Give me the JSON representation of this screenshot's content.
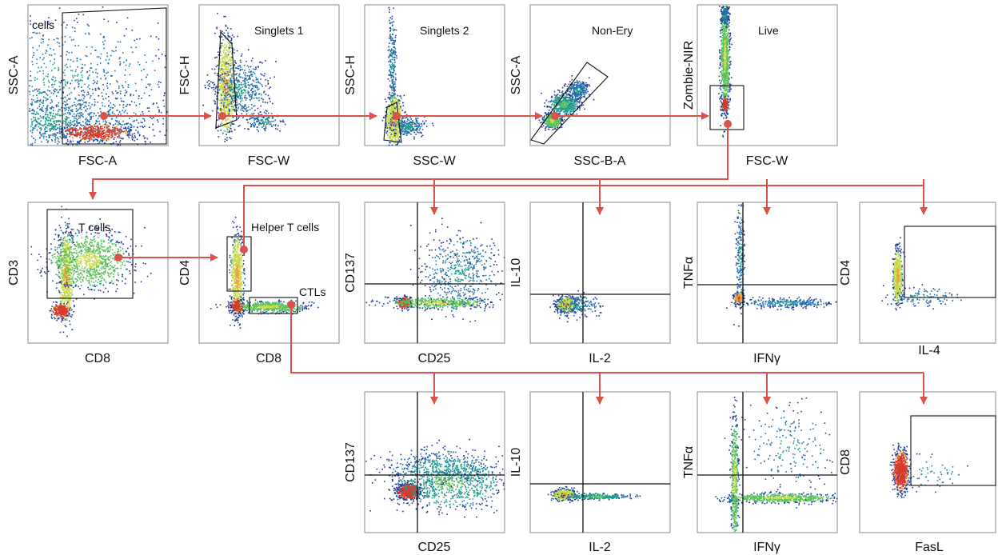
{
  "colors": {
    "arrow": "#d9534a",
    "density": [
      "#1a1b6e",
      "#213a98",
      "#1f6fa8",
      "#1e9c8c",
      "#5cc05a",
      "#c9d84a",
      "#f0a038",
      "#d63a2a"
    ],
    "axis_line": "#111111",
    "frame": "#888888"
  },
  "panels": [
    {
      "id": "cells",
      "x_label": "FSC-A",
      "y_label": "SSC-A",
      "gate_label": "cells"
    },
    {
      "id": "singlets1",
      "x_label": "FSC-W",
      "y_label": "FSC-H",
      "gate_label": "Singlets 1"
    },
    {
      "id": "singlets2",
      "x_label": "SSC-W",
      "y_label": "SSC-H",
      "gate_label": "Singlets 2"
    },
    {
      "id": "nonery",
      "x_label": "SSC-B-A",
      "y_label": "SSC-A",
      "gate_label": "Non-Ery"
    },
    {
      "id": "live",
      "x_label": "FSC-W",
      "y_label": "Zombie-NIR",
      "gate_label": "Live"
    },
    {
      "id": "tcells",
      "x_label": "CD8",
      "y_label": "CD3",
      "gate_label": "T cells"
    },
    {
      "id": "helper",
      "x_label": "CD8",
      "y_label": "CD4",
      "gate_label": "Helper T cells",
      "gate_label_2": "CTLs"
    },
    {
      "id": "h_cd137",
      "x_label": "CD25",
      "y_label": "CD137",
      "gate_label": ""
    },
    {
      "id": "h_il10",
      "x_label": "IL-2",
      "y_label": "IL-10",
      "gate_label": ""
    },
    {
      "id": "h_tnfa",
      "x_label": "IFNγ",
      "y_label": "TNFα",
      "gate_label": ""
    },
    {
      "id": "h_cd4",
      "x_label": "IL-4",
      "y_label": "CD4",
      "gate_label": ""
    },
    {
      "id": "c_cd137",
      "x_label": "CD25",
      "y_label": "CD137",
      "gate_label": ""
    },
    {
      "id": "c_il10",
      "x_label": "IL-2",
      "y_label": "IL-10",
      "gate_label": ""
    },
    {
      "id": "c_tnfa",
      "x_label": "IFNγ",
      "y_label": "TNFα",
      "gate_label": ""
    },
    {
      "id": "c_cd8",
      "x_label": "FasL",
      "y_label": "CD8",
      "gate_label": ""
    }
  ]
}
